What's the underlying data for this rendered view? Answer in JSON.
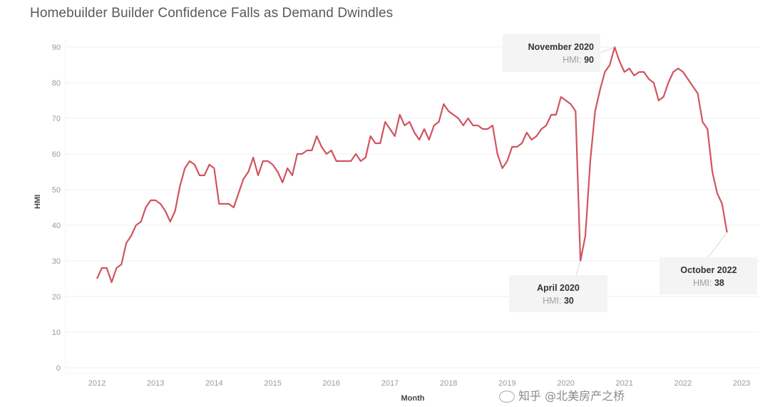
{
  "title": "Homebuilder Builder Confidence Falls as Demand Dwindles",
  "watermark": {
    "icon": "chat-bubble-icon",
    "text": "知乎 @北美房产之桥"
  },
  "colors": {
    "line": "#d0545f",
    "grid": "#efefef",
    "annotation_bg": "#f4f4f4"
  },
  "chart_data": {
    "type": "line",
    "title": "Homebuilder Builder Confidence Falls as Demand Dwindles",
    "xlabel": "Month",
    "ylabel": "HMI",
    "ylim": [
      0,
      90
    ],
    "yticks": [
      0,
      10,
      20,
      30,
      40,
      50,
      60,
      70,
      80,
      90
    ],
    "xticks": [
      "2012",
      "2013",
      "2014",
      "2015",
      "2016",
      "2017",
      "2018",
      "2019",
      "2020",
      "2021",
      "2022",
      "2023"
    ],
    "grid": "horizontal",
    "start": "2012-01",
    "frequency": "monthly",
    "series": [
      {
        "name": "HMI",
        "values": [
          25,
          28,
          28,
          24,
          28,
          29,
          35,
          37,
          40,
          41,
          45,
          47,
          47,
          46,
          44,
          41,
          44,
          51,
          56,
          58,
          57,
          54,
          54,
          57,
          56,
          46,
          46,
          46,
          45,
          49,
          53,
          55,
          59,
          54,
          58,
          58,
          57,
          55,
          52,
          56,
          54,
          60,
          60,
          61,
          61,
          65,
          62,
          60,
          61,
          58,
          58,
          58,
          58,
          60,
          58,
          59,
          65,
          63,
          63,
          69,
          67,
          65,
          71,
          68,
          69,
          66,
          64,
          67,
          64,
          68,
          69,
          74,
          72,
          71,
          70,
          68,
          70,
          68,
          68,
          67,
          67,
          68,
          60,
          56,
          58,
          62,
          62,
          63,
          66,
          64,
          65,
          67,
          68,
          71,
          71,
          76,
          75,
          74,
          72,
          30,
          37,
          58,
          72,
          78,
          83,
          85,
          90,
          86,
          83,
          84,
          82,
          83,
          83,
          81,
          80,
          75,
          76,
          80,
          83,
          84,
          83,
          81,
          79,
          77,
          69,
          67,
          55,
          49,
          46,
          38
        ]
      }
    ],
    "annotations": [
      {
        "title": "November 2020",
        "label": "HMI:",
        "value": "90",
        "index": 106,
        "placement": "left-top"
      },
      {
        "title": "April 2020",
        "label": "HMI:",
        "value": "30",
        "index": 99,
        "placement": "below-left"
      },
      {
        "title": "October 2022",
        "label": "HMI:",
        "value": "38",
        "index": 129,
        "placement": "below"
      }
    ]
  }
}
